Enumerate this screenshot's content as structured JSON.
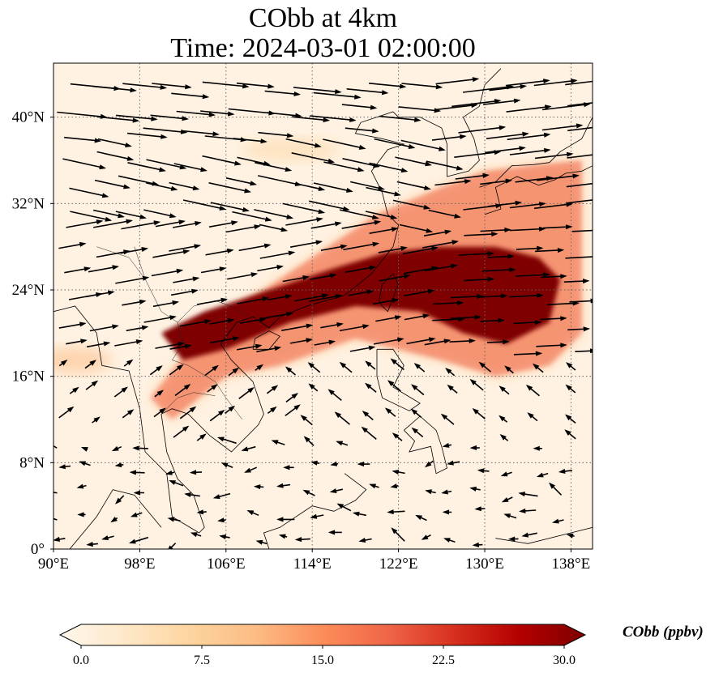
{
  "title": {
    "line1": "CObb at 4km",
    "line2": "Time: 2024-03-01 02:00:00"
  },
  "map": {
    "lon_range": [
      90,
      140
    ],
    "lat_range": [
      0,
      45
    ],
    "lon_ticks": [
      {
        "value": 90,
        "label": "90°E"
      },
      {
        "value": 98,
        "label": "98°E"
      },
      {
        "value": 106,
        "label": "106°E"
      },
      {
        "value": 114,
        "label": "114°E"
      },
      {
        "value": 122,
        "label": "122°E"
      },
      {
        "value": 130,
        "label": "130°E"
      },
      {
        "value": 138,
        "label": "138°E"
      }
    ],
    "lat_ticks": [
      {
        "value": 0,
        "label": "0°"
      },
      {
        "value": 8,
        "label": "8°N"
      },
      {
        "value": 16,
        "label": "16°N"
      },
      {
        "value": 24,
        "label": "24°N"
      },
      {
        "value": 32,
        "label": "32°N"
      },
      {
        "value": 40,
        "label": "40°N"
      }
    ],
    "gridlines": "dotted",
    "field": "CObb",
    "vectors": "wind arrows at 4km",
    "plume": {
      "description_color": "#7f0000",
      "core_points": [
        [
          104,
          22
        ],
        [
          110,
          24
        ],
        [
          116,
          26
        ],
        [
          121,
          27.5
        ],
        [
          126,
          28
        ],
        [
          131,
          28
        ],
        [
          135,
          27
        ],
        [
          137,
          25
        ],
        [
          136,
          21
        ],
        [
          132,
          19
        ],
        [
          128,
          20
        ],
        [
          124,
          22
        ],
        [
          118,
          22.5
        ],
        [
          112,
          21
        ],
        [
          106,
          18.5
        ],
        [
          102,
          17.5
        ],
        [
          100,
          20
        ]
      ],
      "edge_points": [
        [
          99,
          14
        ],
        [
          103,
          19
        ],
        [
          108,
          23
        ],
        [
          114,
          27
        ],
        [
          120,
          31
        ],
        [
          126,
          33.5
        ],
        [
          130,
          35
        ],
        [
          134,
          35.5
        ],
        [
          139,
          36
        ],
        [
          139,
          20
        ],
        [
          136,
          17
        ],
        [
          131,
          16
        ],
        [
          126,
          17.5
        ],
        [
          118,
          19.5
        ],
        [
          111,
          17
        ],
        [
          106,
          16
        ],
        [
          101,
          12
        ]
      ]
    }
  },
  "colorbar": {
    "label": "CObb (ppbv)",
    "min": 0.0,
    "max": 30.0,
    "ticks": [
      {
        "value": 0,
        "label": "0.0"
      },
      {
        "value": 7.5,
        "label": "7.5"
      },
      {
        "value": 15,
        "label": "15.0"
      },
      {
        "value": 22.5,
        "label": "22.5"
      },
      {
        "value": 30,
        "label": "30.0"
      }
    ],
    "colormap": [
      "#fff7ec",
      "#fee8c8",
      "#fdd49e",
      "#fdbb84",
      "#fc8d59",
      "#ef6548",
      "#d7301f",
      "#b30000",
      "#7f0000"
    ],
    "extend": "both"
  }
}
